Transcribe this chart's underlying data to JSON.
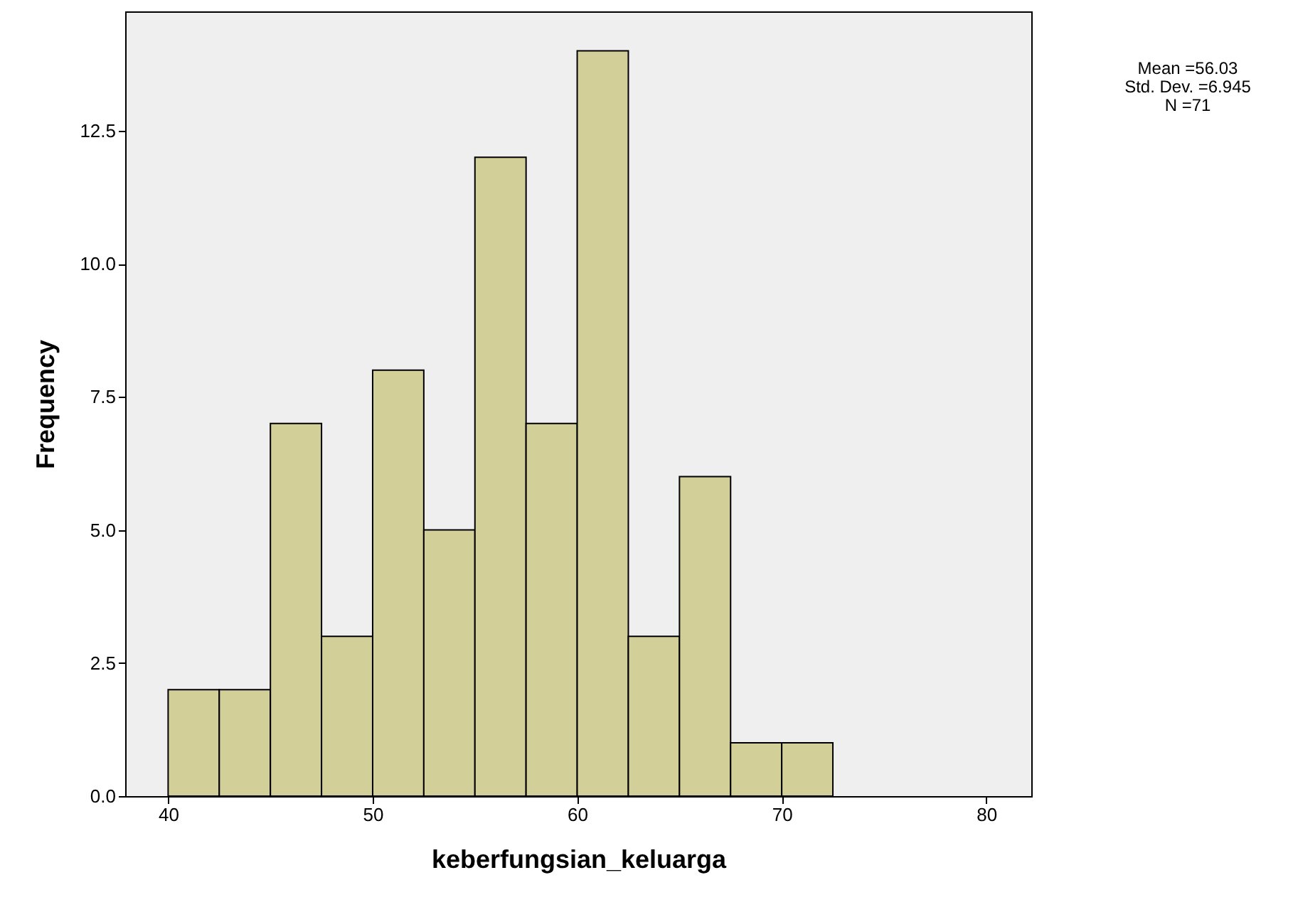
{
  "chart_data": {
    "type": "histogram",
    "xlabel": "keberfungsian_keluarga",
    "ylabel": "Frequency",
    "bins": [
      40,
      42.5,
      45,
      47.5,
      50,
      52.5,
      55,
      57.5,
      60,
      62.5,
      65,
      67.5,
      70,
      72.5
    ],
    "values": [
      2,
      2,
      7,
      3,
      8,
      5,
      12,
      7,
      14,
      3,
      6,
      1,
      1
    ],
    "color": "#d3cf98",
    "xlim": [
      37.9,
      82.2
    ],
    "xticks": [
      40,
      50,
      60,
      70,
      80
    ],
    "ylim": [
      0,
      14.74
    ],
    "yticks": [
      {
        "value": 0,
        "label": "0.0"
      },
      2.5,
      {
        "value": 5,
        "label": "5.0"
      },
      7.5,
      {
        "value": 10,
        "label": "10.0"
      },
      12.5
    ],
    "grid": false,
    "annotations": [
      "Mean =56.03",
      "Std. Dev. =6.945",
      "N =71"
    ]
  }
}
